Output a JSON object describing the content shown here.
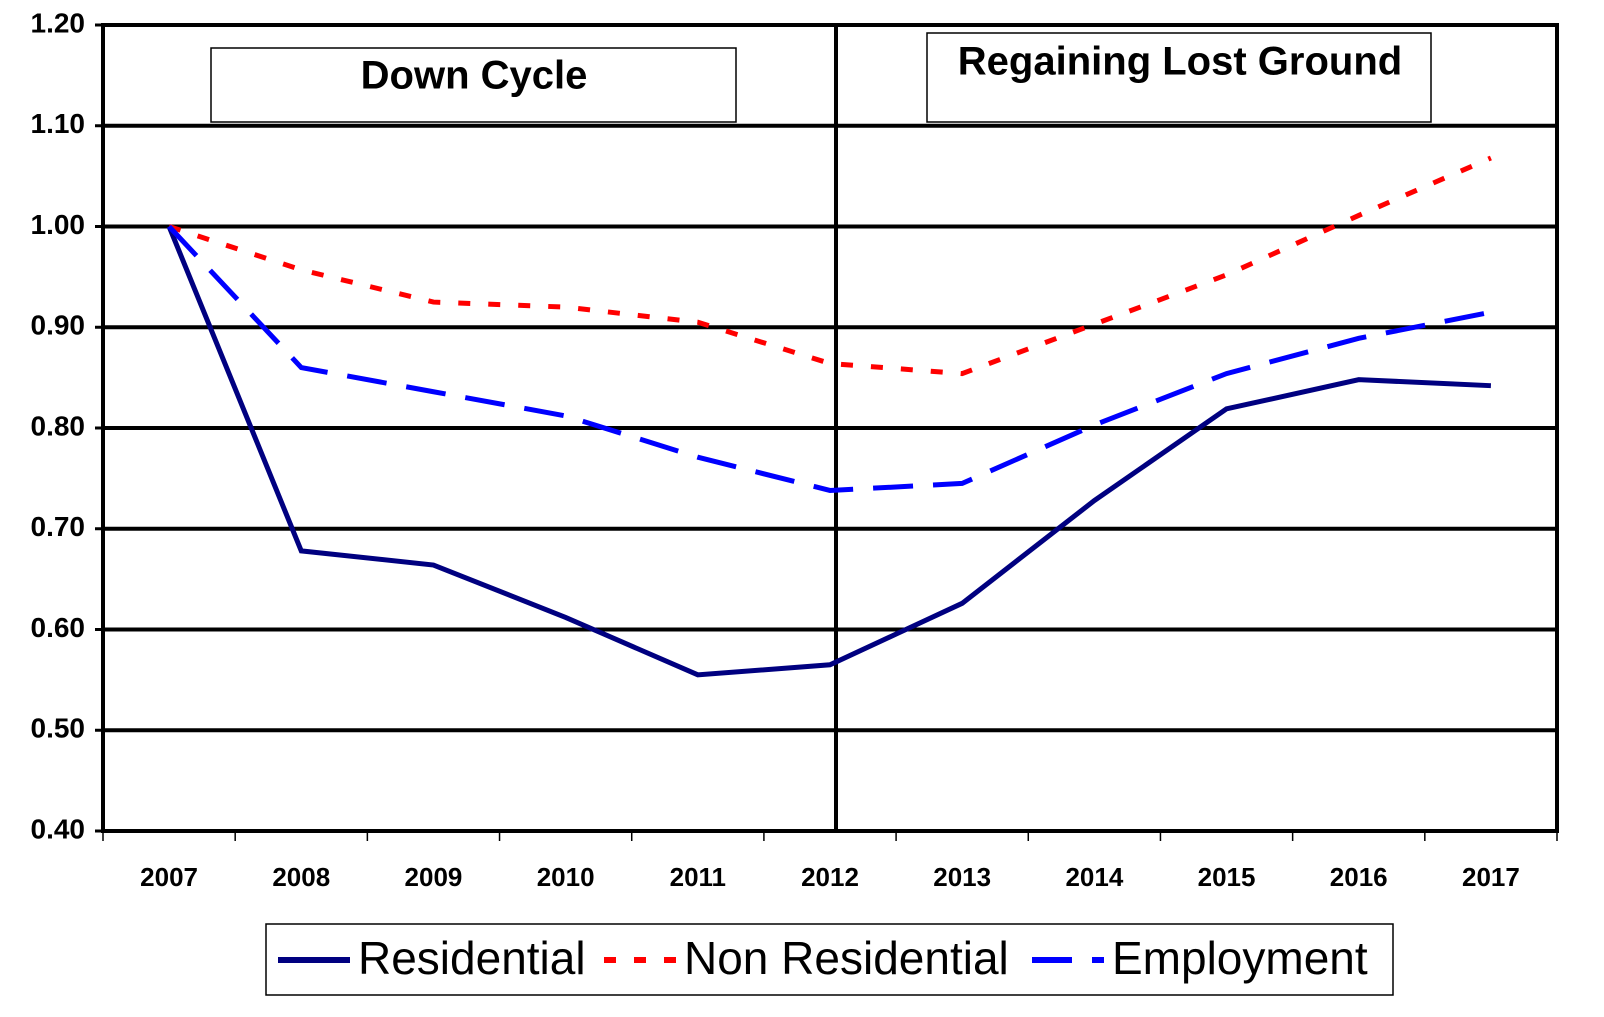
{
  "chart_data": {
    "type": "line",
    "annotations": [
      "Down Cycle",
      "Regaining Lost Ground"
    ],
    "categories": [
      "2007",
      "2008",
      "2009",
      "2010",
      "2011",
      "2012",
      "2013",
      "2014",
      "2015",
      "2016",
      "2017"
    ],
    "series": [
      {
        "name": "Residential",
        "color": "#000080",
        "line_style": "solid",
        "values": [
          1.0,
          0.678,
          0.664,
          0.612,
          0.555,
          0.565,
          0.626,
          0.728,
          0.819,
          0.848,
          0.842
        ]
      },
      {
        "name": "Non Residential",
        "color": "#ff0000",
        "line_style": "dotted",
        "values": [
          1.0,
          0.957,
          0.925,
          0.92,
          0.905,
          0.864,
          0.854,
          0.903,
          0.952,
          1.011,
          1.068
        ]
      },
      {
        "name": "Employment",
        "color": "#0000ff",
        "line_style": "dashed",
        "values": [
          1.0,
          0.86,
          0.836,
          0.812,
          0.771,
          0.738,
          0.745,
          0.803,
          0.854,
          0.889,
          0.915
        ]
      }
    ],
    "ylim": [
      0.4,
      1.2
    ],
    "yticks": [
      {
        "value": 0.4,
        "label": "0.40"
      },
      {
        "value": 0.5,
        "label": "0.50"
      },
      {
        "value": 0.6,
        "label": "0.60"
      },
      {
        "value": 0.7,
        "label": "0.70"
      },
      {
        "value": 0.8,
        "label": "0.80"
      },
      {
        "value": 0.9,
        "label": "0.90"
      },
      {
        "value": 1.0,
        "label": "1.00"
      },
      {
        "value": 1.1,
        "label": "1.10"
      },
      {
        "value": 1.2,
        "label": "1.20"
      }
    ],
    "grid": true
  }
}
